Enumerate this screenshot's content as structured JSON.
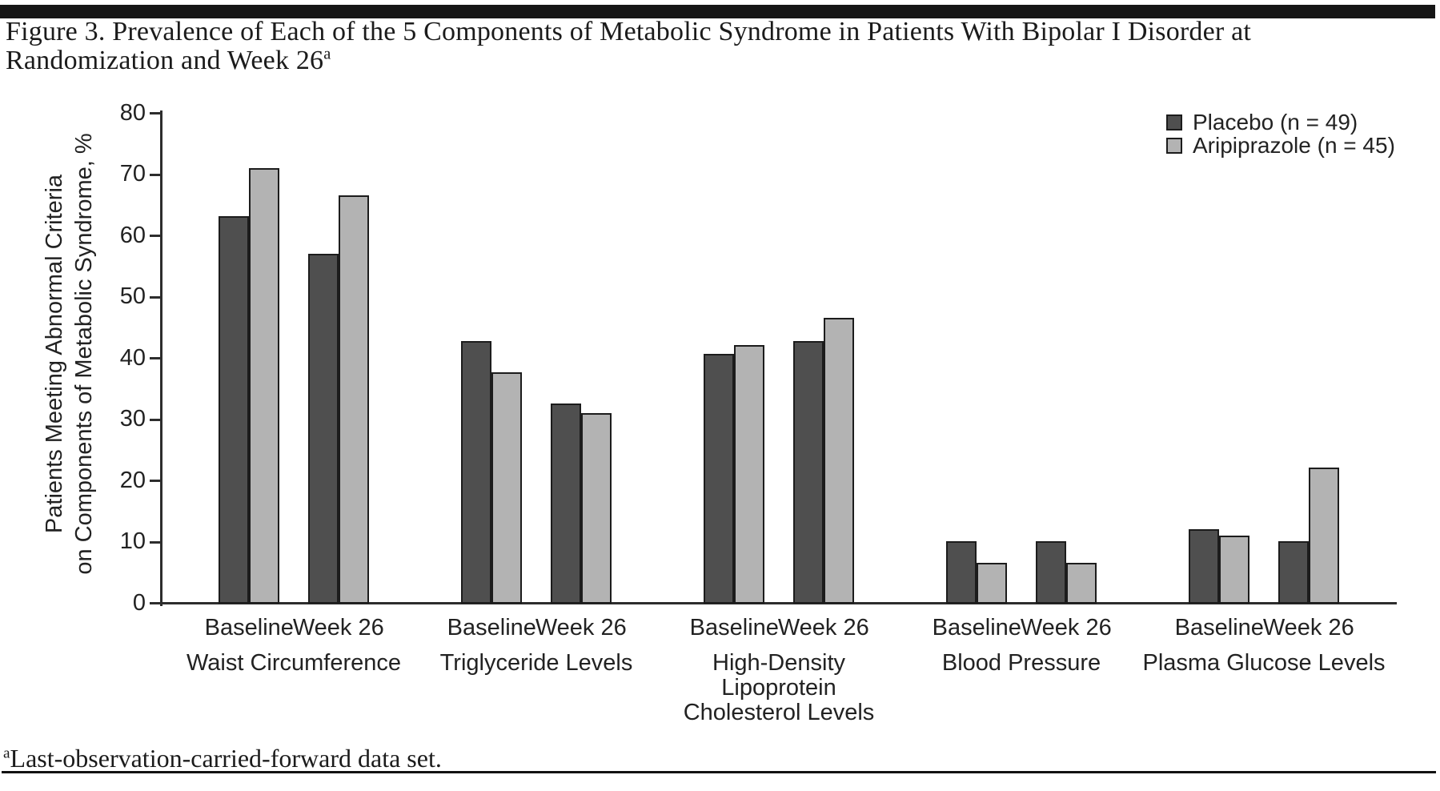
{
  "figure": {
    "title_line1": "Figure 3. Prevalence of Each of the 5 Components of Metabolic Syndrome in Patients With Bipolar I Disorder at",
    "title_line2": "Randomization and Week 26",
    "title_superscript": "a",
    "footnote_superscript": "a",
    "footnote_text": "Last-observation-carried-forward data set."
  },
  "legend": {
    "items": [
      {
        "label": "Placebo (n = 49)",
        "color": "#4f4f4f"
      },
      {
        "label": "Aripiprazole (n = 45)",
        "color": "#b3b3b3"
      }
    ]
  },
  "chart_data": {
    "type": "bar",
    "title": "Prevalence of Each of the 5 Components of Metabolic Syndrome in Patients With Bipolar I Disorder at Randomization and Week 26",
    "ylabel_line1": "Patients Meeting Abnormal Criteria",
    "ylabel_line2": "on Components of Metabolic Syndrome, %",
    "ylim": [
      0,
      80
    ],
    "yticks": [
      0,
      10,
      20,
      30,
      40,
      50,
      60,
      70,
      80
    ],
    "grid": false,
    "legend_position": "top-right",
    "timepoints": [
      "Baseline",
      "Week 26"
    ],
    "series": [
      {
        "key": "placebo",
        "name": "Placebo (n = 49)",
        "color": "#4f4f4f"
      },
      {
        "key": "aripiprazole",
        "name": "Aripiprazole (n = 45)",
        "color": "#b3b3b3"
      }
    ],
    "groups": [
      {
        "category": "Waist Circumference",
        "category_lines": [
          "Waist Circumference"
        ],
        "values": {
          "baseline": {
            "placebo": 63.3,
            "aripiprazole": 71.1
          },
          "week26": {
            "placebo": 57.1,
            "aripiprazole": 66.7
          }
        }
      },
      {
        "category": "Triglyceride Levels",
        "category_lines": [
          "Triglyceride Levels"
        ],
        "values": {
          "baseline": {
            "placebo": 42.9,
            "aripiprazole": 37.8
          },
          "week26": {
            "placebo": 32.7,
            "aripiprazole": 31.1
          }
        }
      },
      {
        "category": "High-Density Lipoprotein Cholesterol Levels",
        "category_lines": [
          "High-Density",
          "Lipoprotein",
          "Cholesterol Levels"
        ],
        "values": {
          "baseline": {
            "placebo": 40.8,
            "aripiprazole": 42.2
          },
          "week26": {
            "placebo": 42.9,
            "aripiprazole": 46.7
          }
        }
      },
      {
        "category": "Blood Pressure",
        "category_lines": [
          "Blood Pressure"
        ],
        "values": {
          "baseline": {
            "placebo": 10.2,
            "aripiprazole": 6.7
          },
          "week26": {
            "placebo": 10.2,
            "aripiprazole": 6.7
          }
        }
      },
      {
        "category": "Plasma Glucose Levels",
        "category_lines": [
          "Plasma Glucose Levels"
        ],
        "values": {
          "baseline": {
            "placebo": 12.2,
            "aripiprazole": 11.1
          },
          "week26": {
            "placebo": 10.2,
            "aripiprazole": 22.2
          }
        }
      }
    ]
  }
}
